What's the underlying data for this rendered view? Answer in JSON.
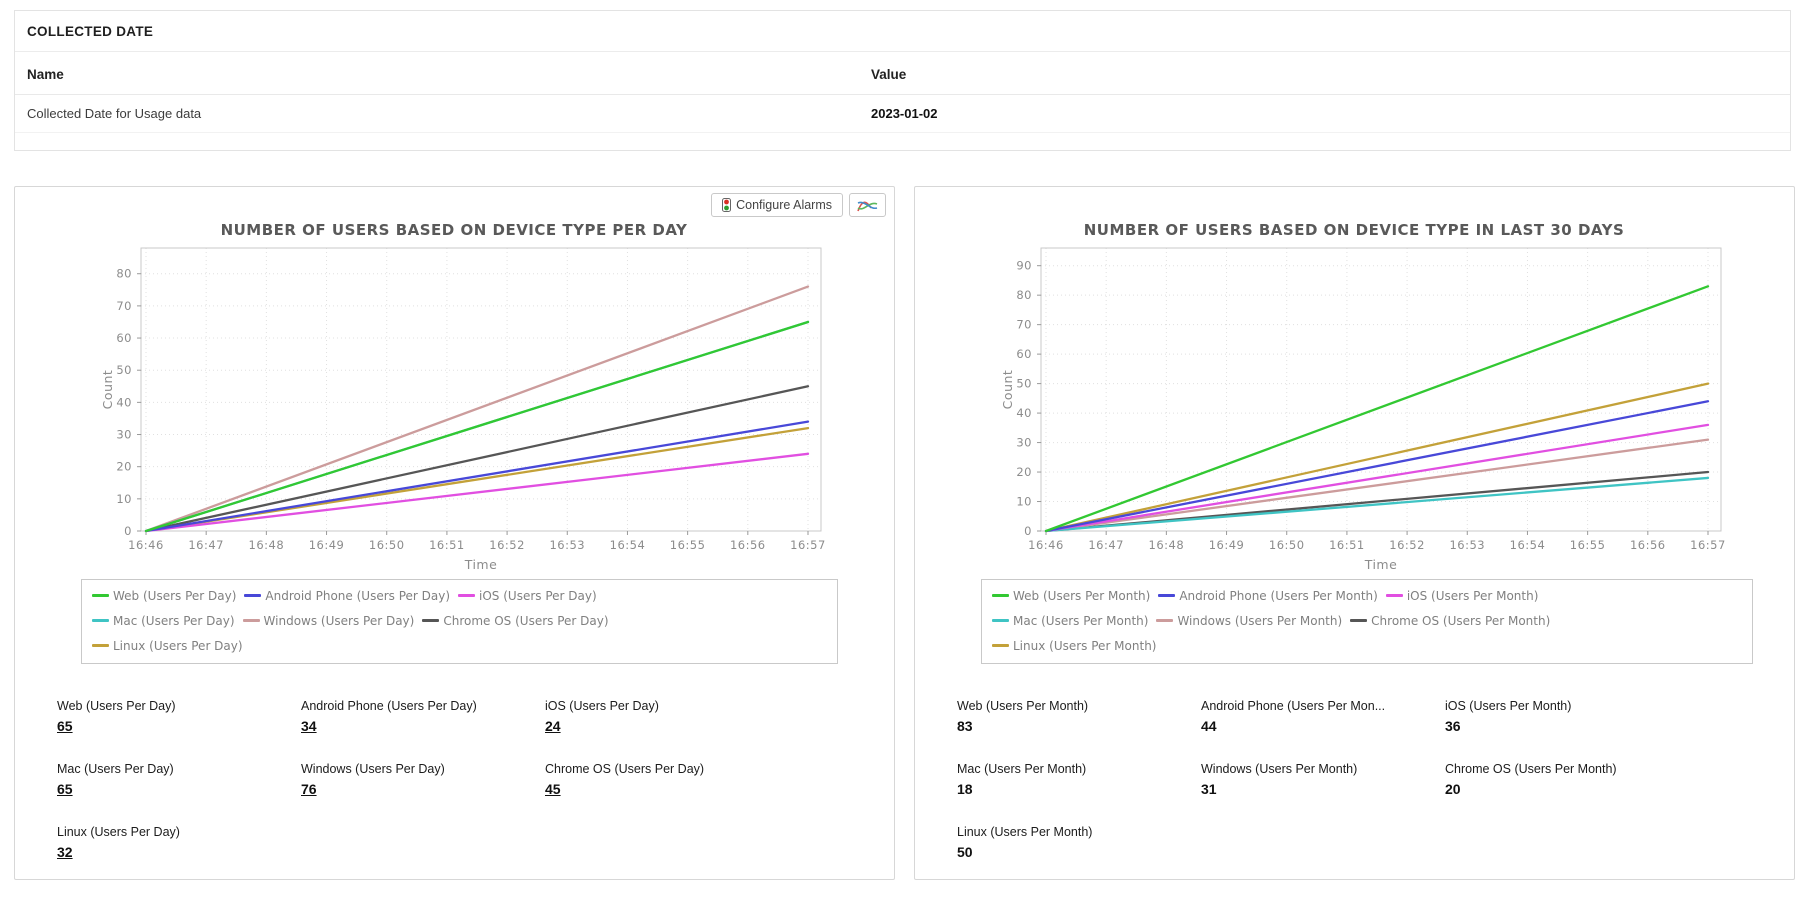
{
  "collected_date_card": {
    "title": "COLLECTED DATE",
    "columns": [
      "Name",
      "Value"
    ],
    "rows": [
      {
        "name": "Collected Date for Usage data",
        "value": "2023-01-02"
      }
    ]
  },
  "toolbar": {
    "configure_alarms_label": "Configure Alarms",
    "icons": [
      "traffic-light-icon",
      "line-chart-icon"
    ]
  },
  "chart_data": [
    {
      "type": "line",
      "title": "NUMBER OF USERS BASED ON DEVICE TYPE PER DAY",
      "xlabel": "Time",
      "ylabel": "Count",
      "x": [
        "16:46",
        "16:47",
        "16:48",
        "16:49",
        "16:50",
        "16:51",
        "16:52",
        "16:53",
        "16:54",
        "16:55",
        "16:56",
        "16:57"
      ],
      "yticks": [
        0,
        10,
        20,
        30,
        40,
        50,
        60,
        70,
        80
      ],
      "ylim": [
        0,
        88
      ],
      "grid": true,
      "legend_position": "bottom",
      "shape": "straight line from start value at 16:46 to end value at 16:57",
      "series": [
        {
          "name": "Web (Users Per Day)",
          "color": "#32c832",
          "start": 0,
          "end": 65
        },
        {
          "name": "Android Phone (Users Per Day)",
          "color": "#4848d8",
          "start": 0,
          "end": 34
        },
        {
          "name": "iOS (Users Per Day)",
          "color": "#e14fe1",
          "start": 0,
          "end": 24
        },
        {
          "name": "Mac (Users Per Day)",
          "color": "#3fc4c4",
          "start": 0,
          "end": 65
        },
        {
          "name": "Windows (Users Per Day)",
          "color": "#cc9c9c",
          "start": 0,
          "end": 76
        },
        {
          "name": "Chrome OS (Users Per Day)",
          "color": "#565656",
          "start": 0,
          "end": 45
        },
        {
          "name": "Linux (Users Per Day)",
          "color": "#c3a139",
          "start": 0,
          "end": 32
        }
      ],
      "stats": [
        {
          "label": "Web (Users Per Day)",
          "value": "65"
        },
        {
          "label": "Android Phone (Users Per Day)",
          "value": "34"
        },
        {
          "label": "iOS (Users Per Day)",
          "value": "24"
        },
        {
          "label": "Mac (Users Per Day)",
          "value": "65"
        },
        {
          "label": "Windows (Users Per Day)",
          "value": "76"
        },
        {
          "label": "Chrome OS (Users Per Day)",
          "value": "45"
        },
        {
          "label": "Linux (Users Per Day)",
          "value": "32"
        }
      ],
      "stats_values_underlined": true
    },
    {
      "type": "line",
      "title": "NUMBER OF USERS BASED ON DEVICE TYPE IN LAST 30 DAYS",
      "xlabel": "Time",
      "ylabel": "Count",
      "x": [
        "16:46",
        "16:47",
        "16:48",
        "16:49",
        "16:50",
        "16:51",
        "16:52",
        "16:53",
        "16:54",
        "16:55",
        "16:56",
        "16:57"
      ],
      "yticks": [
        0,
        10,
        20,
        30,
        40,
        50,
        60,
        70,
        80,
        90
      ],
      "ylim": [
        0,
        96
      ],
      "grid": true,
      "legend_position": "bottom",
      "shape": "straight line from start value at 16:46 to end value at 16:57",
      "series": [
        {
          "name": "Web (Users Per Month)",
          "color": "#32c832",
          "start": 0,
          "end": 83
        },
        {
          "name": "Android Phone (Users Per Month)",
          "color": "#4848d8",
          "start": 0,
          "end": 44
        },
        {
          "name": "iOS (Users Per Month)",
          "color": "#e14fe1",
          "start": 0,
          "end": 36
        },
        {
          "name": "Mac (Users Per Month)",
          "color": "#3fc4c4",
          "start": 0,
          "end": 18
        },
        {
          "name": "Windows (Users Per Month)",
          "color": "#cc9c9c",
          "start": 0,
          "end": 31
        },
        {
          "name": "Chrome OS (Users Per Month)",
          "color": "#565656",
          "start": 0,
          "end": 20
        },
        {
          "name": "Linux (Users Per Month)",
          "color": "#c3a139",
          "start": 0,
          "end": 50
        }
      ],
      "stats": [
        {
          "label": "Web (Users Per Month)",
          "value": "83"
        },
        {
          "label": "Android Phone (Users Per Mon...",
          "value": "44"
        },
        {
          "label": "iOS (Users Per Month)",
          "value": "36"
        },
        {
          "label": "Mac (Users Per Month)",
          "value": "18"
        },
        {
          "label": "Windows (Users Per Month)",
          "value": "31"
        },
        {
          "label": "Chrome OS (Users Per Month)",
          "value": "20"
        },
        {
          "label": "Linux (Users Per Month)",
          "value": "50"
        }
      ],
      "stats_values_underlined": false
    }
  ]
}
